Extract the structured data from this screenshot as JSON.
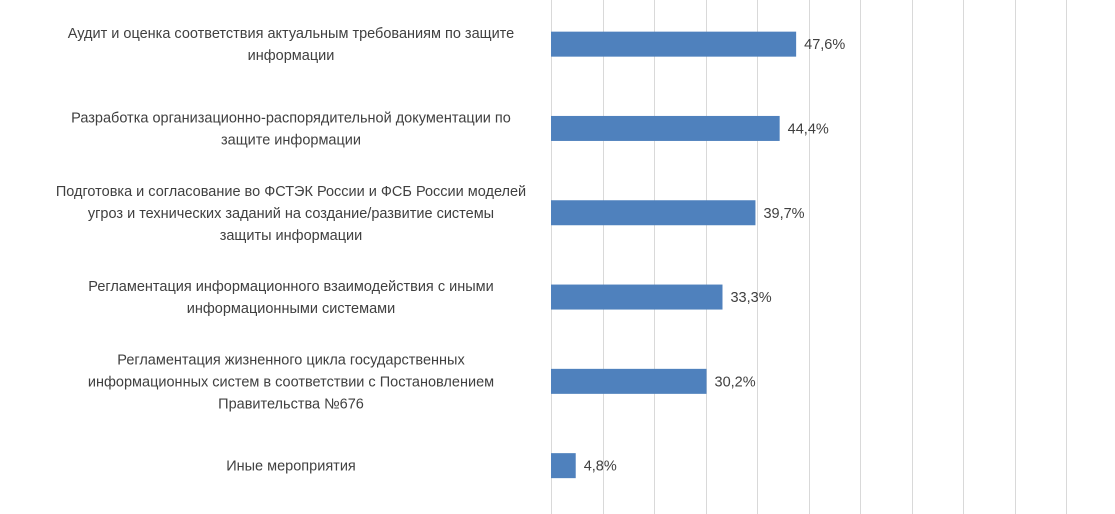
{
  "chart_data": {
    "type": "bar",
    "orientation": "horizontal",
    "categories": [
      [
        "Аудит и оценка соответствия актуальным требованиям по защите",
        "информации"
      ],
      [
        "Разработка организационно-распорядительной документации по",
        "защите информации"
      ],
      [
        "Подготовка и согласование во ФСТЭК России и ФСБ России моделей",
        "угроз и технических заданий на создание/развитие системы",
        "защиты информации"
      ],
      [
        "Регламентация информационного взаимодействия с иными",
        "информационными системами"
      ],
      [
        "Регламентация жизненного цикла государственных",
        "информационных систем в соответствии с Постановлением",
        "Правительства №676"
      ],
      [
        "Иные мероприятия"
      ]
    ],
    "values": [
      47.6,
      44.4,
      39.7,
      33.3,
      30.2,
      4.8
    ],
    "value_labels": [
      "47,6%",
      "44,4%",
      "39,7%",
      "33,3%",
      "30,2%",
      "4,8%"
    ],
    "xlim": [
      0,
      100
    ],
    "grid": "vertical",
    "legend": "none",
    "bar_color": "#4f81bd",
    "grid_color": "#d9d9d9",
    "text_color": "#404040"
  }
}
